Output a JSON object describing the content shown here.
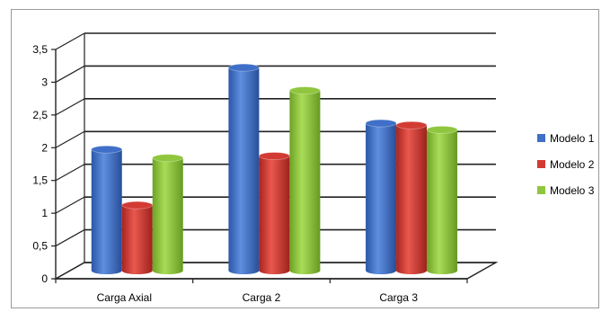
{
  "chart_data": {
    "type": "bar",
    "title": "",
    "xlabel": "",
    "ylabel": "",
    "categories": [
      "Carga Axial",
      "Carga 2",
      "Carga 3"
    ],
    "series": [
      {
        "name": "Modelo 1",
        "color": "#3f6fc8",
        "values": [
          1.85,
          3.1,
          2.25
        ]
      },
      {
        "name": "Modelo 2",
        "color": "#d23b33",
        "values": [
          1.0,
          1.75,
          2.22
        ]
      },
      {
        "name": "Modelo 3",
        "color": "#8fc63e",
        "values": [
          1.72,
          2.75,
          2.15
        ]
      }
    ],
    "ylim": [
      0,
      3.5
    ],
    "yticks": [
      "0",
      "0,5",
      "1",
      "1,5",
      "2",
      "2,5",
      "3",
      "3,5"
    ],
    "grid": true,
    "legend_position": "right",
    "style": "3d-cylinder"
  }
}
